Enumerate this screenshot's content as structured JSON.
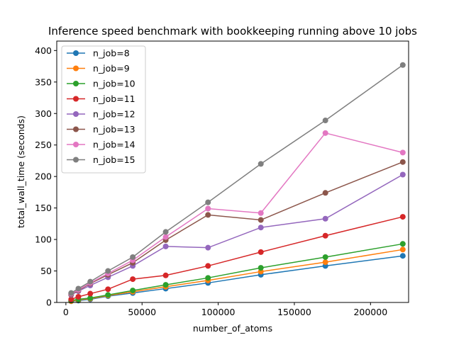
{
  "chart_data": {
    "type": "line",
    "title": "Inference speed benchmark with bookkeeping running above 10 jobs",
    "xlabel": "number_of_atoms",
    "ylabel": "total_wall_time (seconds)",
    "xlim": [
      -6000,
      225000
    ],
    "ylim": [
      0,
      415
    ],
    "xticks": [
      0,
      50000,
      100000,
      150000,
      200000
    ],
    "xtick_labels": [
      "0",
      "50000",
      "100000",
      "150000",
      "200000"
    ],
    "yticks": [
      0,
      50,
      100,
      150,
      200,
      250,
      300,
      350,
      400
    ],
    "ytick_labels": [
      "0",
      "50",
      "100",
      "150",
      "200",
      "250",
      "300",
      "350",
      "400"
    ],
    "grid": false,
    "legend_position": "upper-left",
    "x": [
      3456,
      8192,
      16000,
      27648,
      43904,
      65536,
      93312,
      128000,
      170368,
      221184
    ],
    "series": [
      {
        "name": "n_job=8",
        "color": "#1f77b4",
        "values": [
          2,
          3,
          5,
          10,
          15,
          22,
          31,
          44,
          58,
          74
        ]
      },
      {
        "name": "n_job=9",
        "color": "#ff7f0e",
        "values": [
          2,
          4,
          6,
          11,
          17,
          25,
          35,
          49,
          64,
          84
        ]
      },
      {
        "name": "n_job=10",
        "color": "#2ca02c",
        "values": [
          3,
          5,
          7,
          12,
          19,
          28,
          39,
          55,
          72,
          93
        ]
      },
      {
        "name": "n_job=11",
        "color": "#d62728",
        "values": [
          5,
          9,
          14,
          21,
          37,
          43,
          58,
          80,
          106,
          136
        ]
      },
      {
        "name": "n_job=12",
        "color": "#9467bd",
        "values": [
          12,
          18,
          27,
          40,
          58,
          89,
          87,
          119,
          133,
          203
        ]
      },
      {
        "name": "n_job=13",
        "color": "#8c564b",
        "values": [
          13,
          19,
          30,
          44,
          63,
          99,
          139,
          131,
          174,
          223
        ]
      },
      {
        "name": "n_job=14",
        "color": "#e377c2",
        "values": [
          14,
          20,
          31,
          46,
          67,
          104,
          149,
          142,
          269,
          238
        ]
      },
      {
        "name": "n_job=15",
        "color": "#7f7f7f",
        "values": [
          15,
          22,
          33,
          50,
          72,
          112,
          159,
          220,
          289,
          377
        ]
      }
    ]
  }
}
